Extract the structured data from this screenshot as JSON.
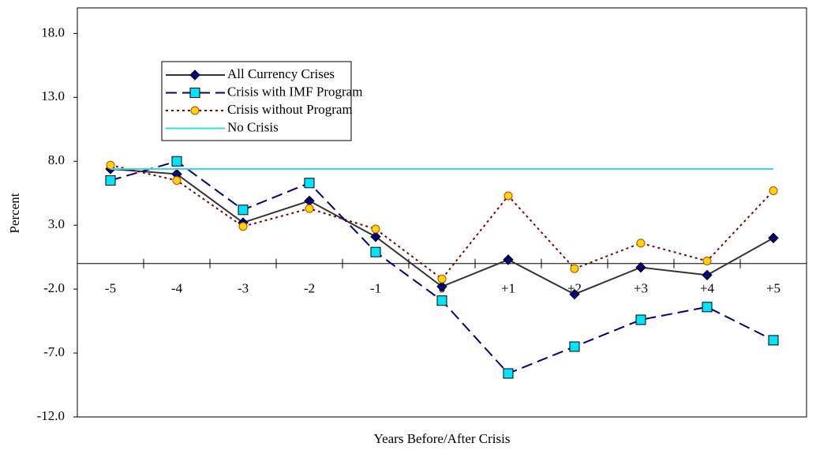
{
  "chart_data": {
    "type": "line",
    "y_label": "Percent",
    "x_label": "Years Before/After Crisis",
    "categories": [
      "-5",
      "-4",
      "-3",
      "-2",
      "-1",
      "0",
      "+1",
      "+2",
      "+3",
      "+4",
      "+5"
    ],
    "ylim": [
      -12,
      20
    ],
    "yticks": [
      {
        "value": -12,
        "label": "-12.0"
      },
      {
        "value": -7,
        "label": "-7.0"
      },
      {
        "value": -2,
        "label": "-2.0"
      },
      {
        "value": 3,
        "label": "3.0"
      },
      {
        "value": 8,
        "label": "8.0"
      },
      {
        "value": 13,
        "label": "13.0"
      },
      {
        "value": 18,
        "label": "18.0"
      }
    ],
    "series": [
      {
        "name": "All Currency Crises",
        "color": "#333333",
        "dash": "solid",
        "marker": "diamond",
        "marker_color": "#000080",
        "values": [
          7.4,
          7.0,
          3.2,
          4.9,
          2.1,
          -1.8,
          0.3,
          -2.4,
          -0.3,
          -0.9,
          2.0
        ]
      },
      {
        "name": "Crisis with IMF Program",
        "color": "#000080",
        "dash": "dashed",
        "marker": "square",
        "marker_color": "#00e5ff",
        "values": [
          6.5,
          8.0,
          4.2,
          6.3,
          0.9,
          -2.9,
          -8.6,
          -6.5,
          -4.4,
          -3.4,
          -6.0
        ]
      },
      {
        "name": "Crisis without Program",
        "color": "#800000",
        "dash": "dotted",
        "marker": "circle",
        "marker_color": "#ffd700",
        "values": [
          7.7,
          6.5,
          2.9,
          4.3,
          2.7,
          -1.2,
          5.3,
          -0.4,
          1.6,
          0.2,
          5.7
        ]
      },
      {
        "name": "No Crisis",
        "color": "#33ddee",
        "dash": "solid",
        "marker": "none",
        "marker_color": "#33ddee",
        "values": [
          7.4,
          7.4,
          7.4,
          7.4,
          7.4,
          7.4,
          7.4,
          7.4,
          7.4,
          7.4,
          7.4
        ]
      }
    ]
  }
}
